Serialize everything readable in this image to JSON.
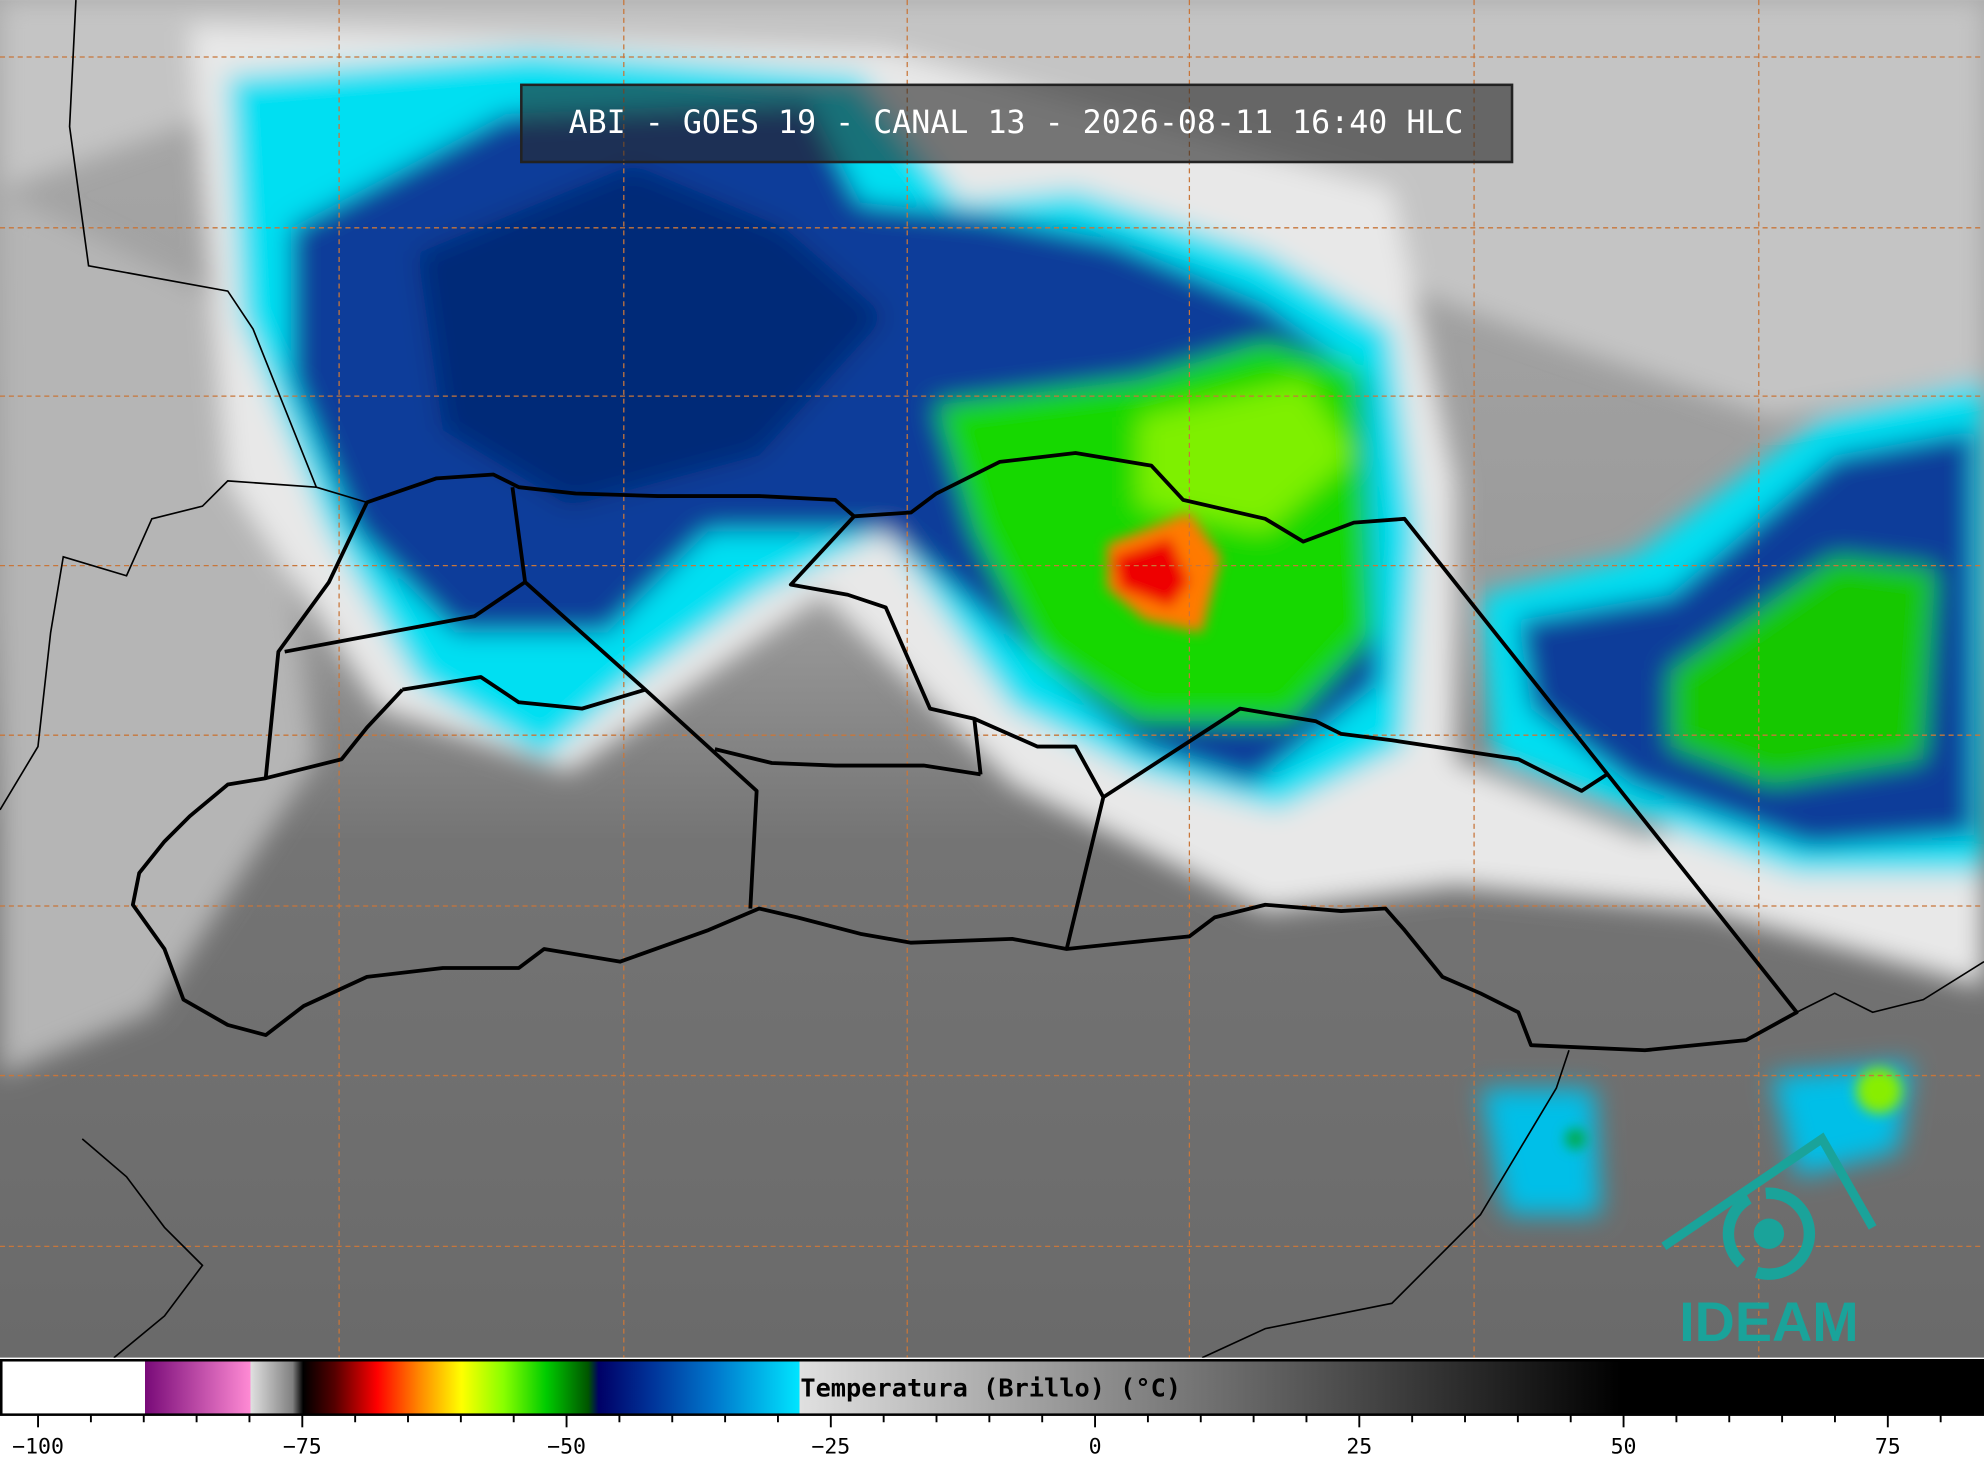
{
  "header": {
    "title": "ABI - GOES 19 - CANAL 13 - 2026-08-11 16:40 HLC"
  },
  "logo": {
    "text": "IDEAM"
  },
  "chart_data": {
    "type": "colorbar",
    "xlabel": "Temperatura (Brillo) (°C)",
    "xlim": [
      -103.6,
      84.1
    ],
    "xticks": [
      {
        "value": -100,
        "label": "−100"
      },
      {
        "value": -75,
        "label": "−75"
      },
      {
        "value": -50,
        "label": "−50"
      },
      {
        "value": -25,
        "label": "−25"
      },
      0,
      25,
      50,
      75
    ],
    "minor_xticks": [
      -95,
      -90,
      -85,
      -80,
      -70,
      -65,
      -60,
      -55,
      -45,
      -40,
      -35,
      -30,
      -20,
      -15,
      -10,
      -5,
      5,
      10,
      15,
      20,
      30,
      35,
      40,
      45,
      55,
      60,
      65,
      70,
      80
    ],
    "colormap": [
      {
        "value": -103.6,
        "color": "#ffffff"
      },
      {
        "value": -90,
        "color": "#ffffff"
      },
      {
        "value": -90,
        "color": "#780a78"
      },
      {
        "value": -80,
        "color": "#ff8ad4"
      },
      {
        "value": -80,
        "color": "#e0e0e0"
      },
      {
        "value": -76,
        "color": "#808080"
      },
      {
        "value": -75,
        "color": "#000000"
      },
      {
        "value": -72,
        "color": "#550000"
      },
      {
        "value": -68,
        "color": "#ff0000"
      },
      {
        "value": -64,
        "color": "#ff8800"
      },
      {
        "value": -60,
        "color": "#ffff00"
      },
      {
        "value": -56,
        "color": "#88ff00"
      },
      {
        "value": -52,
        "color": "#00cc00"
      },
      {
        "value": -48,
        "color": "#005500"
      },
      {
        "value": -47,
        "color": "#000066"
      },
      {
        "value": -42,
        "color": "#003399"
      },
      {
        "value": -36,
        "color": "#0077cc"
      },
      {
        "value": -28,
        "color": "#00e5ff"
      },
      {
        "value": -28,
        "color": "#e0e0e0"
      },
      {
        "value": 50,
        "color": "#000000"
      },
      {
        "value": 84.1,
        "color": "#000000"
      }
    ]
  }
}
